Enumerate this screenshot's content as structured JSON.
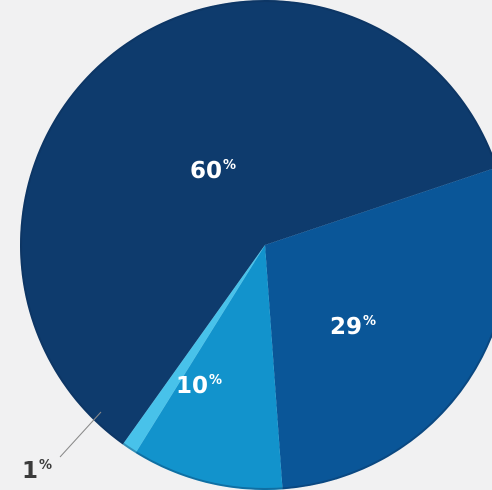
{
  "chart_data": {
    "type": "pie",
    "title": "",
    "slices": [
      {
        "label": "60%",
        "value": 60,
        "color": "#0e3b6d"
      },
      {
        "label": "29%",
        "value": 29,
        "color": "#0a5698"
      },
      {
        "label": "10%",
        "value": 10,
        "color": "#1293cc"
      },
      {
        "label": "1%",
        "value": 1,
        "color": "#48c2ea"
      }
    ],
    "legend": "none",
    "label_style": "number with superscript percent sign"
  }
}
